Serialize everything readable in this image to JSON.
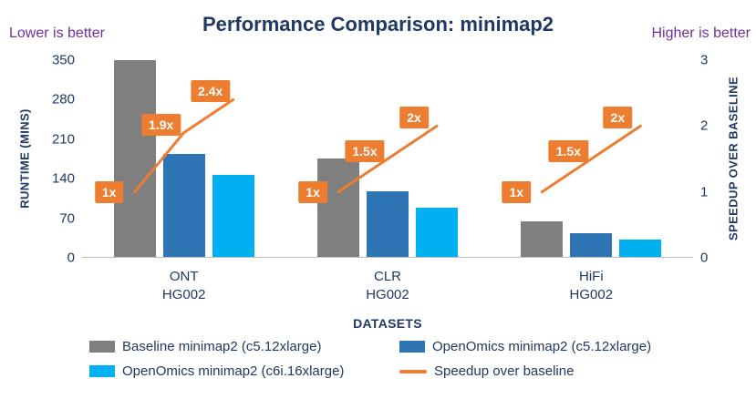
{
  "annotations": {
    "left": "Lower is better",
    "right": "Higher is better"
  },
  "chart_data": {
    "type": "bar+line",
    "title": "Performance Comparison: minimap2",
    "xlabel": "DATASETS",
    "ylabel_left": "RUNTIME (MINS)",
    "ylabel_right": "SPEEDUP OVER BASELINE",
    "ylim_left": [
      0,
      350
    ],
    "yticks_left": [
      0,
      70,
      140,
      210,
      280,
      350
    ],
    "ylim_right": [
      0,
      3
    ],
    "yticks_right": [
      0,
      1,
      2,
      3
    ],
    "grid": false,
    "legend_position": "bottom",
    "categories": [
      [
        "ONT",
        "HG002"
      ],
      [
        "CLR",
        "HG002"
      ],
      [
        "HiFi",
        "HG002"
      ]
    ],
    "bar_series": [
      {
        "name": "Baseline minimap2 (c5.12xlarge)",
        "color": "#7F7F7F",
        "values": [
          348,
          174,
          63
        ]
      },
      {
        "name": "OpenOmics minimap2 (c5.12xlarge)",
        "color": "#2E75B6",
        "values": [
          183,
          116,
          42
        ]
      },
      {
        "name": "OpenOmics minimap2 (c6i.16xlarge)",
        "color": "#00B0F0",
        "values": [
          145,
          87,
          31
        ]
      }
    ],
    "line_series": {
      "name": "Speedup over baseline",
      "color": "#ED7D31",
      "values": [
        [
          1,
          1.9,
          2.4
        ],
        [
          1,
          1.5,
          2
        ],
        [
          1,
          1.5,
          2
        ]
      ],
      "labels": [
        [
          "1x",
          "1.9x",
          "2.4x"
        ],
        [
          "1x",
          "1.5x",
          "2x"
        ],
        [
          "1x",
          "1.5x",
          "2x"
        ]
      ]
    }
  }
}
